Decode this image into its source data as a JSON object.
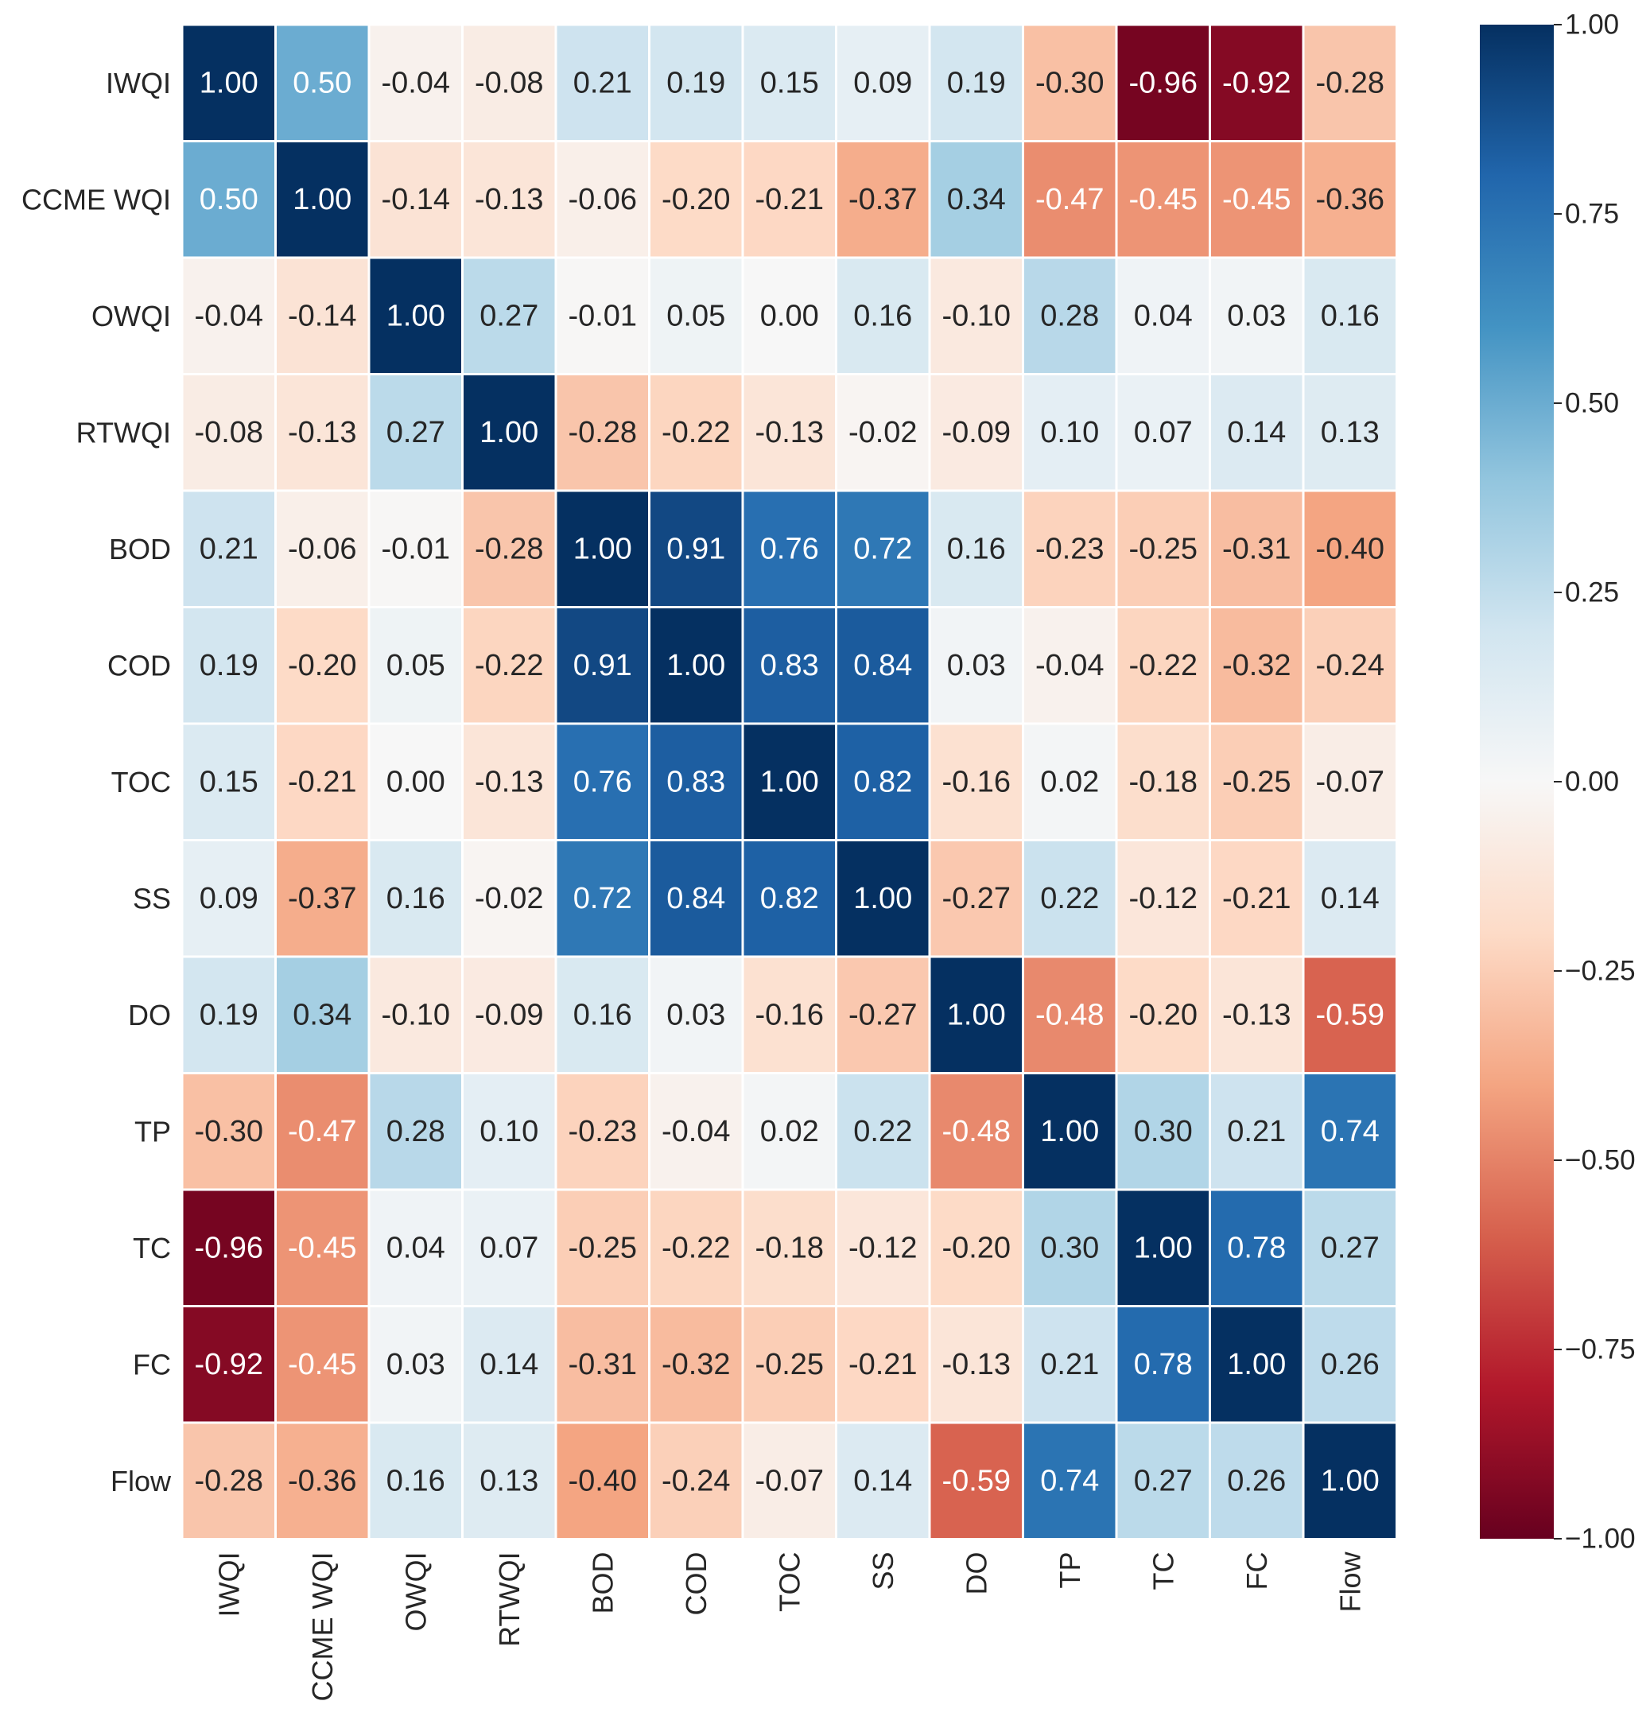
{
  "chart_data": {
    "type": "heatmap",
    "title": "",
    "xlabel": "",
    "ylabel": "",
    "labels": [
      "IWQI",
      "CCME WQI",
      "OWQI",
      "RTWQI",
      "BOD",
      "COD",
      "TOC",
      "SS",
      "DO",
      "TP",
      "TC",
      "FC",
      "Flow"
    ],
    "matrix": [
      [
        1.0,
        0.5,
        -0.04,
        -0.08,
        0.21,
        0.19,
        0.15,
        0.09,
        0.19,
        -0.3,
        -0.96,
        -0.92,
        -0.28
      ],
      [
        0.5,
        1.0,
        -0.14,
        -0.13,
        -0.06,
        -0.2,
        -0.21,
        -0.37,
        0.34,
        -0.47,
        -0.45,
        -0.45,
        -0.36
      ],
      [
        -0.04,
        -0.14,
        1.0,
        0.27,
        -0.01,
        0.05,
        -0.0,
        0.16,
        -0.1,
        0.28,
        0.04,
        0.03,
        0.16
      ],
      [
        -0.08,
        -0.13,
        0.27,
        1.0,
        -0.28,
        -0.22,
        -0.13,
        -0.02,
        -0.09,
        0.1,
        0.07,
        0.14,
        0.13
      ],
      [
        0.21,
        -0.06,
        -0.01,
        -0.28,
        1.0,
        0.91,
        0.76,
        0.72,
        0.16,
        -0.23,
        -0.25,
        -0.31,
        -0.4
      ],
      [
        0.19,
        -0.2,
        0.05,
        -0.22,
        0.91,
        1.0,
        0.83,
        0.84,
        0.03,
        -0.04,
        -0.22,
        -0.32,
        -0.24
      ],
      [
        0.15,
        -0.21,
        -0.0,
        -0.13,
        0.76,
        0.83,
        1.0,
        0.82,
        -0.16,
        0.02,
        -0.18,
        -0.25,
        -0.07
      ],
      [
        0.09,
        -0.37,
        0.16,
        -0.02,
        0.72,
        0.84,
        0.82,
        1.0,
        -0.27,
        0.22,
        -0.12,
        -0.21,
        0.14
      ],
      [
        0.19,
        0.34,
        -0.1,
        -0.09,
        0.16,
        0.03,
        -0.16,
        -0.27,
        1.0,
        -0.48,
        -0.2,
        -0.13,
        -0.59
      ],
      [
        -0.3,
        -0.47,
        0.28,
        0.1,
        -0.23,
        -0.04,
        0.02,
        0.22,
        -0.48,
        1.0,
        0.3,
        0.21,
        0.74
      ],
      [
        -0.96,
        -0.45,
        0.04,
        0.07,
        -0.25,
        -0.22,
        -0.18,
        -0.12,
        -0.2,
        0.3,
        1.0,
        0.78,
        0.27
      ],
      [
        -0.92,
        -0.45,
        0.03,
        0.14,
        -0.31,
        -0.32,
        -0.25,
        -0.21,
        -0.13,
        0.21,
        0.78,
        1.0,
        0.26
      ],
      [
        -0.28,
        -0.36,
        0.16,
        0.13,
        -0.4,
        -0.24,
        -0.07,
        0.14,
        -0.59,
        0.74,
        0.27,
        0.26,
        1.0
      ]
    ],
    "value_range": [
      -1.0,
      1.0
    ],
    "colormap": "RdBu",
    "colorbar": {
      "ticks": [
        1.0,
        0.75,
        0.5,
        0.25,
        0.0,
        -0.25,
        -0.5,
        -0.75,
        -1.0
      ],
      "tick_labels": [
        "1.00",
        "0.75",
        "0.50",
        "0.25",
        "0.00",
        "−0.25",
        "−0.50",
        "−0.75",
        "−1.00"
      ]
    },
    "colors": {
      "text_dark": "#262626",
      "text_light": "#ffffff",
      "cell_border": "#ffffff"
    }
  }
}
